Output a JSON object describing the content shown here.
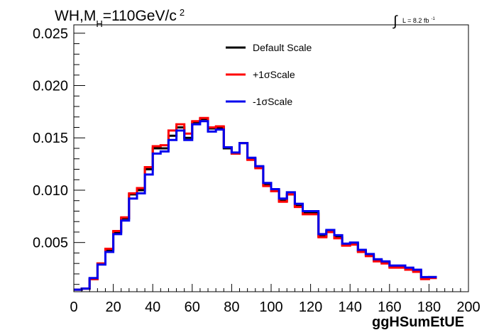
{
  "chart_data": {
    "type": "line",
    "title_parts": {
      "pre": "WH,M",
      "sub": "H",
      "post": "=110GeV/c",
      "sup": "2"
    },
    "lumi_parts": {
      "integral": "∫",
      "text": "L = 8.2 fb",
      "sup": "-1"
    },
    "xlabel": "ggHSumEtUE",
    "ylabel": "",
    "xlim": [
      0,
      200
    ],
    "ylim": [
      0.0003,
      0.0258
    ],
    "grid": false,
    "legend_position": "top-center",
    "x_ticks": [
      "0",
      "20",
      "40",
      "60",
      "80",
      "100",
      "120",
      "140",
      "160",
      "180",
      "200"
    ],
    "y_ticks": [
      "0.005",
      "0.010",
      "0.015",
      "0.020",
      "0.025"
    ],
    "x_tick_values": [
      0,
      20,
      40,
      60,
      80,
      100,
      120,
      140,
      160,
      180,
      200
    ],
    "y_tick_values": [
      0.005,
      0.01,
      0.015,
      0.02,
      0.025
    ],
    "bin_width": 4,
    "bin_edges_start": 0,
    "series": [
      {
        "name": "Default Scale",
        "color": "#000000",
        "values": [
          0.0005,
          0.0006,
          0.0015,
          0.003,
          0.0043,
          0.006,
          0.0073,
          0.0096,
          0.01,
          0.012,
          0.014,
          0.014,
          0.0152,
          0.016,
          0.015,
          0.0165,
          0.0168,
          0.0159,
          0.016,
          0.014,
          0.0135,
          0.0145,
          0.013,
          0.0122,
          0.0105,
          0.01,
          0.009,
          0.0096,
          0.0085,
          0.0078,
          0.0078,
          0.0056,
          0.0061,
          0.0055,
          0.0048,
          0.0049,
          0.0042,
          0.0038,
          0.0033,
          0.0031,
          0.0027,
          0.0027,
          0.0025,
          0.0023,
          0.0016,
          0.0017
        ]
      },
      {
        "name": "+1σScale",
        "color": "#ff0000",
        "values": [
          0.0005,
          0.0006,
          0.0015,
          0.003,
          0.0044,
          0.0061,
          0.0074,
          0.0097,
          0.0102,
          0.0122,
          0.0142,
          0.0143,
          0.0157,
          0.0163,
          0.0154,
          0.0166,
          0.0169,
          0.016,
          0.0161,
          0.0141,
          0.0135,
          0.0145,
          0.0129,
          0.0121,
          0.0104,
          0.0099,
          0.0089,
          0.0096,
          0.0084,
          0.0077,
          0.0077,
          0.0055,
          0.006,
          0.0054,
          0.0047,
          0.0048,
          0.0041,
          0.0037,
          0.0032,
          0.003,
          0.0026,
          0.0026,
          0.0024,
          0.0022,
          0.0015,
          0.0016
        ]
      },
      {
        "name": "-1σScale",
        "color": "#0000ee",
        "values": [
          0.0005,
          0.0006,
          0.0016,
          0.0029,
          0.0041,
          0.0058,
          0.0071,
          0.0092,
          0.0097,
          0.0115,
          0.0135,
          0.0137,
          0.0148,
          0.0157,
          0.0148,
          0.0163,
          0.0166,
          0.0156,
          0.0158,
          0.0141,
          0.0136,
          0.0145,
          0.0131,
          0.0123,
          0.0107,
          0.0101,
          0.0092,
          0.0098,
          0.0087,
          0.008,
          0.008,
          0.0058,
          0.0062,
          0.0057,
          0.0049,
          0.005,
          0.0043,
          0.0039,
          0.0034,
          0.0032,
          0.0028,
          0.0028,
          0.0026,
          0.0024,
          0.0017,
          0.0017
        ]
      }
    ]
  }
}
